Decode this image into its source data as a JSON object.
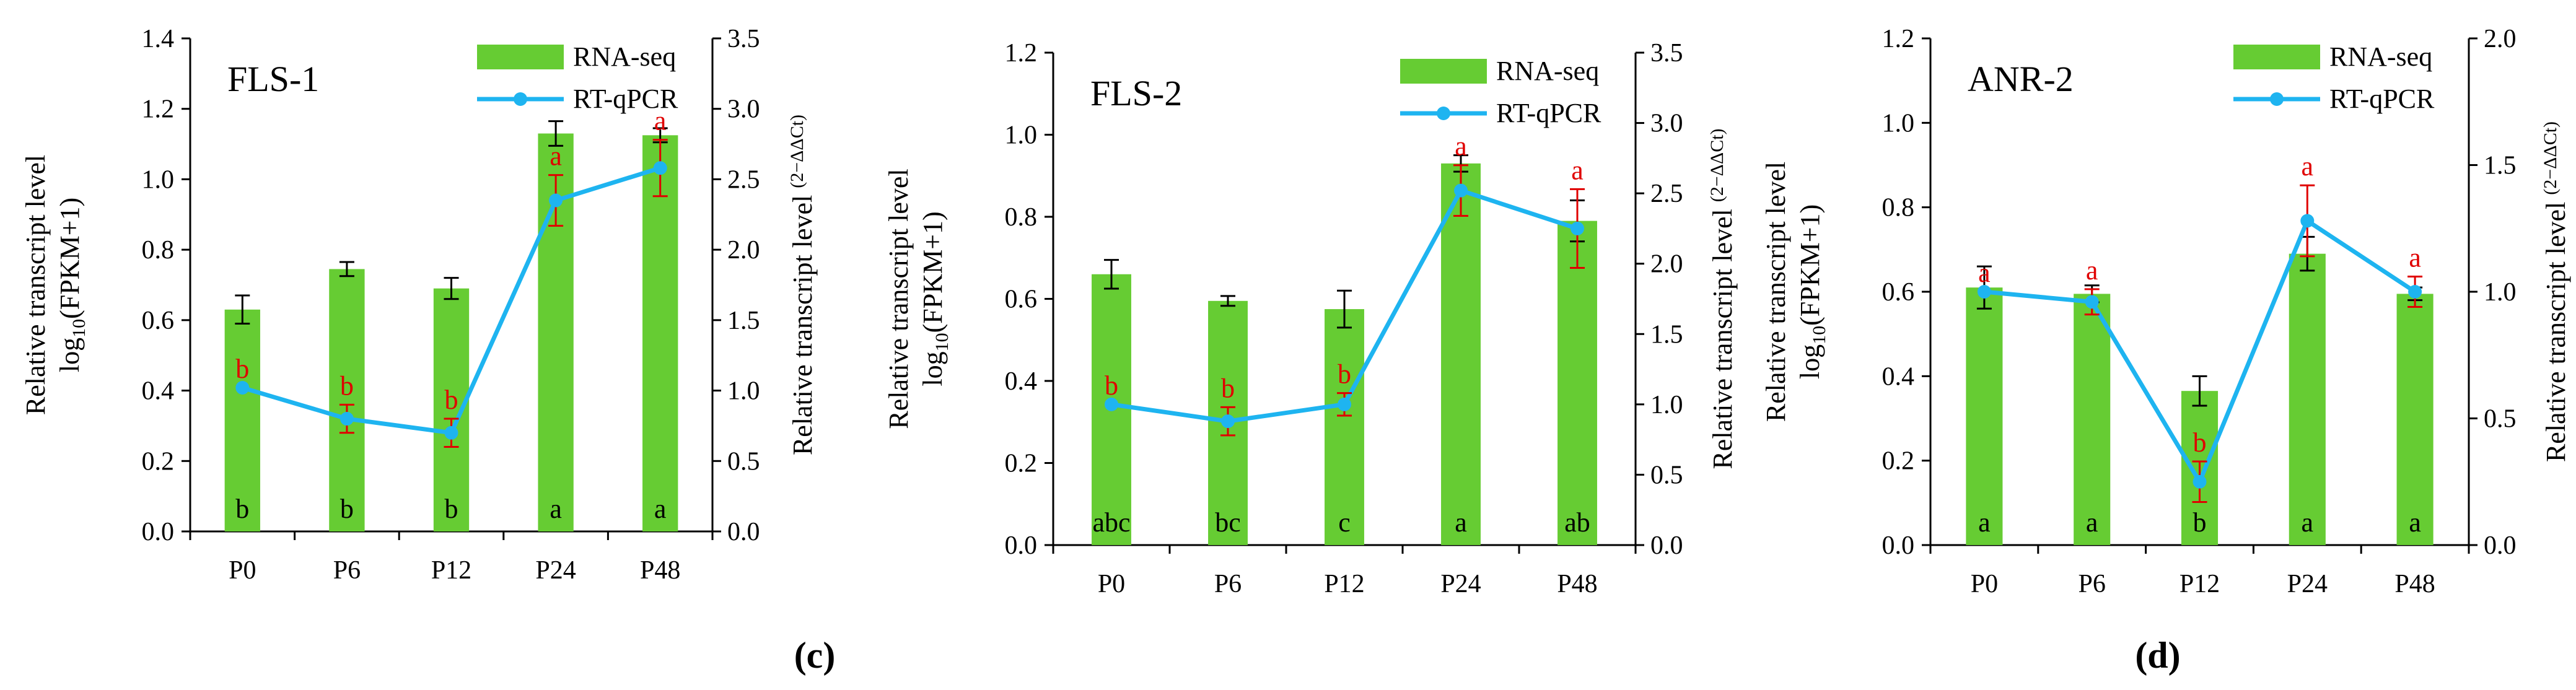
{
  "figure": {
    "panel_labels": [
      "(c)",
      "(d)"
    ],
    "colors": {
      "bar": "#66CC33",
      "line": "#1EB4F0",
      "rt_error": "#E00000",
      "rt_letter": "#E00000",
      "axis": "#000000"
    }
  },
  "chart_data": [
    {
      "type": "bar",
      "title": "FLS-1",
      "categories": [
        "P0",
        "P6",
        "P12",
        "P24",
        "P48"
      ],
      "ylabel": "Relative transcript level log10(FPKM+1)",
      "ylabel_line1": "Relative transcript level",
      "ylabel_line2_pre": "log",
      "ylabel_line2_sub": "10",
      "ylabel_line2_post": "(FPKM+1)",
      "y2label": "Relative transcript level (2−ΔΔCt)",
      "y2label_main": "Relative transcript level ",
      "y2label_sup": "(2−ΔΔCt)",
      "ylim": [
        0,
        1.4
      ],
      "y2lim": [
        0,
        3.5
      ],
      "yticks": [
        "0.0",
        "0.2",
        "0.4",
        "0.6",
        "0.8",
        "1.0",
        "1.2",
        "1.4"
      ],
      "y2ticks": [
        "0.0",
        "0.5",
        "1.0",
        "1.5",
        "2.0",
        "2.5",
        "3.0",
        "3.5"
      ],
      "legend": [
        "RNA-seq",
        "RT-qPCR"
      ],
      "legend_position": "top-right",
      "series": [
        {
          "name": "RNA-seq",
          "kind": "bar",
          "axis": "left",
          "values": [
            0.63,
            0.745,
            0.69,
            1.13,
            1.125
          ],
          "errors": [
            0.04,
            0.02,
            0.03,
            0.035,
            0.02
          ],
          "letters": [
            "b",
            "b",
            "b",
            "a",
            "a"
          ]
        },
        {
          "name": "RT-qPCR",
          "kind": "line",
          "axis": "right",
          "values": [
            1.02,
            0.8,
            0.7,
            2.35,
            2.58
          ],
          "errors": [
            0.0,
            0.1,
            0.1,
            0.18,
            0.2
          ],
          "letters": [
            "b",
            "b",
            "b",
            "a",
            "a"
          ]
        }
      ]
    },
    {
      "type": "bar",
      "title": "FLS-2",
      "categories": [
        "P0",
        "P6",
        "P12",
        "P24",
        "P48"
      ],
      "ylabel": "Relative transcript level log10(FPKM+1)",
      "ylabel_line1": "Relative transcript level",
      "ylabel_line2_pre": "log",
      "ylabel_line2_sub": "10",
      "ylabel_line2_post": "(FPKM+1)",
      "y2label": "Relative transcript level (2−ΔΔCt)",
      "y2label_main": "Relative transcript  level ",
      "y2label_sup": "(2−ΔΔCt)",
      "ylim": [
        0,
        1.2
      ],
      "y2lim": [
        0,
        3.5
      ],
      "yticks": [
        "0.0",
        "0.2",
        "0.4",
        "0.6",
        "0.8",
        "1.0",
        "1.2"
      ],
      "y2ticks": [
        "0.0",
        "0.5",
        "1.0",
        "1.5",
        "2.0",
        "2.5",
        "3.0",
        "3.5"
      ],
      "legend": [
        "RNA-seq",
        "RT-qPCR"
      ],
      "legend_position": "top-right",
      "series": [
        {
          "name": "RNA-seq",
          "kind": "bar",
          "axis": "left",
          "values": [
            0.66,
            0.595,
            0.575,
            0.93,
            0.79
          ],
          "errors": [
            0.035,
            0.012,
            0.045,
            0.02,
            0.05
          ],
          "letters": [
            "abc",
            "bc",
            "c",
            "a",
            "ab"
          ]
        },
        {
          "name": "RT-qPCR",
          "kind": "line",
          "axis": "right",
          "values": [
            1.0,
            0.88,
            1.0,
            2.52,
            2.25
          ],
          "errors": [
            0.0,
            0.1,
            0.08,
            0.18,
            0.28
          ],
          "letters": [
            "b",
            "b",
            "b",
            "a",
            "a"
          ]
        }
      ]
    },
    {
      "type": "bar",
      "title": "ANR-2",
      "categories": [
        "P0",
        "P6",
        "P12",
        "P24",
        "P48"
      ],
      "ylabel": "Relative transcript level log10(FPKM+1)",
      "ylabel_line1": "Relative transcript level",
      "ylabel_line2_pre": "log",
      "ylabel_line2_sub": "10",
      "ylabel_line2_post": "(FPKM+1)",
      "y2label": "Relative transcript level (2−ΔΔCt)",
      "y2label_main": "Relative transcript  level ",
      "y2label_sup": "(2−ΔΔCt)",
      "ylim": [
        0,
        1.2
      ],
      "y2lim": [
        0,
        2.0
      ],
      "yticks": [
        "0.0",
        "0.2",
        "0.4",
        "0.6",
        "0.8",
        "1.0",
        "1.2"
      ],
      "y2ticks": [
        "0.0",
        "0.5",
        "1.0",
        "1.5",
        "2.0"
      ],
      "legend": [
        "RNA-seq",
        "RT-qPCR"
      ],
      "legend_position": "top-right",
      "series": [
        {
          "name": "RNA-seq",
          "kind": "bar",
          "axis": "left",
          "values": [
            0.61,
            0.595,
            0.365,
            0.69,
            0.595
          ],
          "errors": [
            0.05,
            0.02,
            0.035,
            0.04,
            0.015
          ],
          "letters": [
            "a",
            "a",
            "b",
            "a",
            "a"
          ]
        },
        {
          "name": "RT-qPCR",
          "kind": "line",
          "axis": "right",
          "values": [
            1.0,
            0.96,
            0.25,
            1.28,
            1.0
          ],
          "errors": [
            0.0,
            0.05,
            0.08,
            0.14,
            0.06
          ],
          "letters": [
            "a",
            "a",
            "b",
            "a",
            "a"
          ]
        }
      ]
    }
  ]
}
